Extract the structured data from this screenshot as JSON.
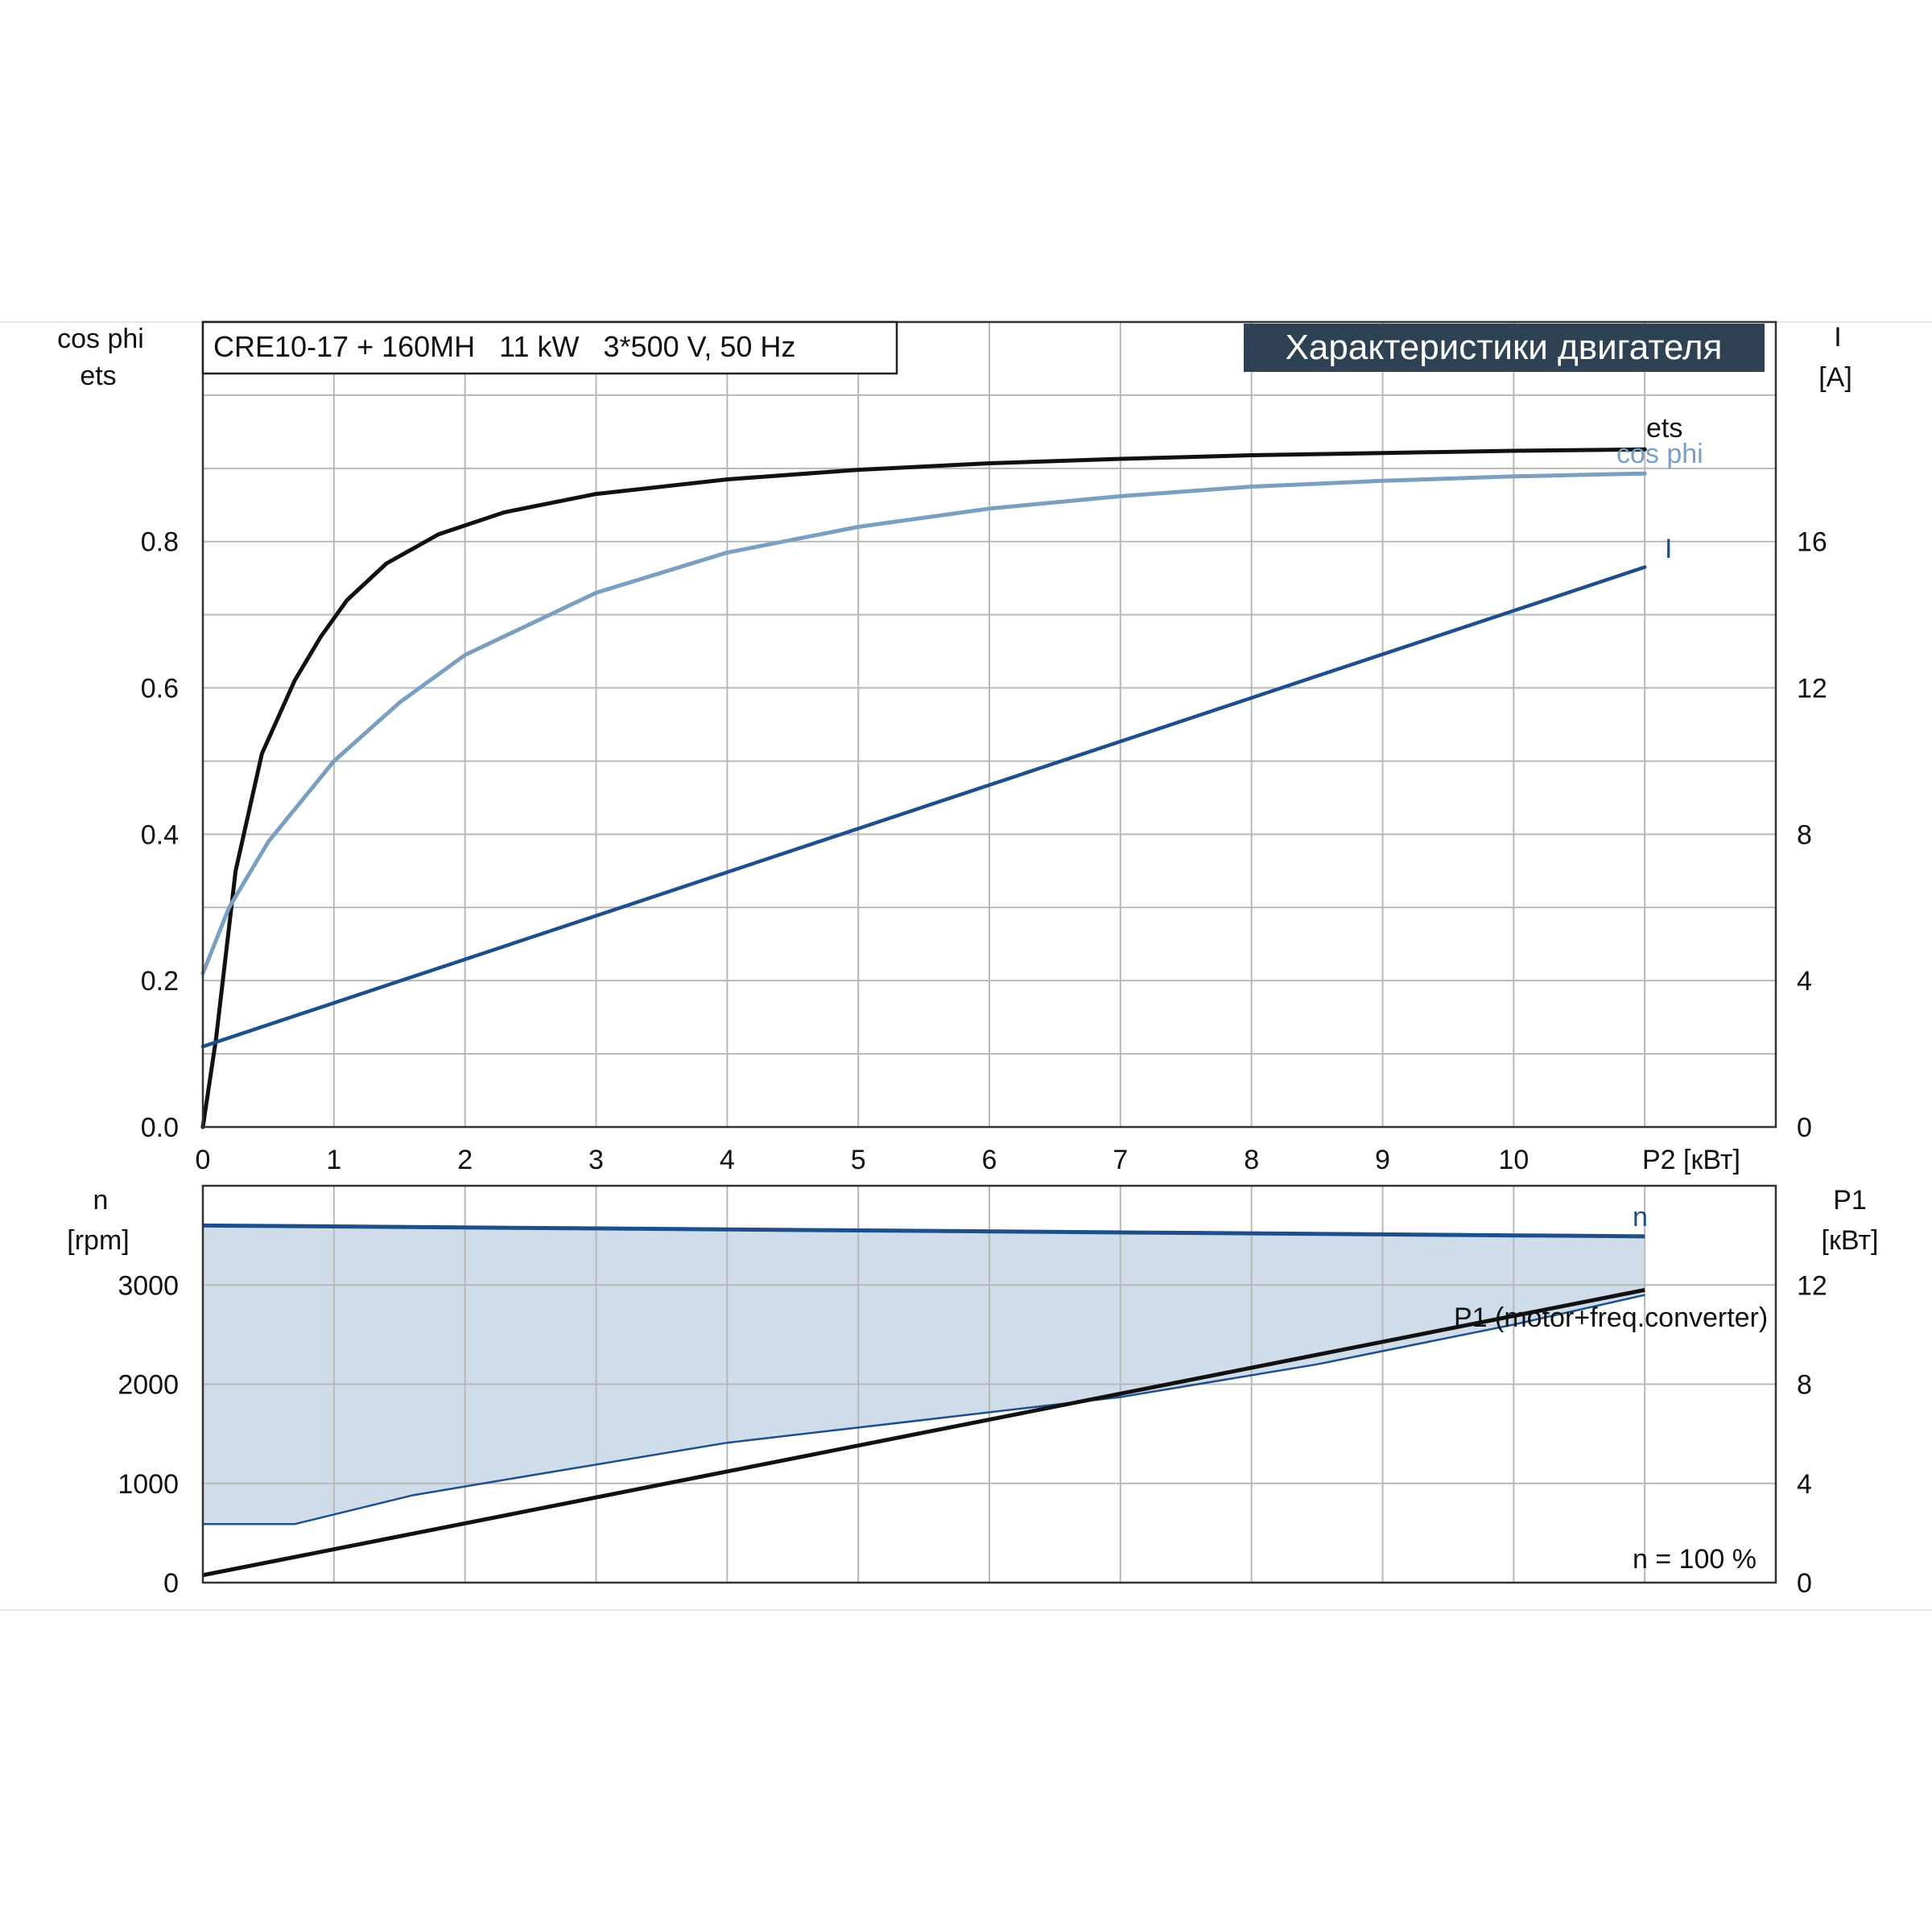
{
  "header": {
    "pump_info": "CRE10-17 + 160MH   11 kW   3*500 V, 50 Hz",
    "title": "Характеристики двигателя"
  },
  "upper_axes": {
    "left_label_1": "cos phi",
    "left_label_2": "ets",
    "right_label_1": "I",
    "right_label_2": "[A]",
    "x_label": "P2 [кВт]",
    "x_ticks": [
      "0",
      "1",
      "2",
      "3",
      "4",
      "5",
      "6",
      "7",
      "8",
      "9",
      "10"
    ],
    "left_ticks": [
      "0.0",
      "0.2",
      "0.4",
      "0.6",
      "0.8"
    ],
    "right_ticks": [
      "0",
      "4",
      "8",
      "12",
      "16"
    ]
  },
  "lower_axes": {
    "left_label_1": "n",
    "left_label_2": "[rpm]",
    "right_label_1": "P1",
    "right_label_2": "[кВт]",
    "left_ticks": [
      "0",
      "1000",
      "2000",
      "3000"
    ],
    "right_ticks": [
      "0",
      "4",
      "8",
      "12"
    ],
    "note": "n = 100 %"
  },
  "colors": {
    "ets": "#111111",
    "cos_phi": "#7a9fc0",
    "current": "#1d4f8c",
    "speed": "#1d4f8c",
    "p1": "#111111",
    "band_fill": "#cfdcea",
    "title_bg": "#2f4253"
  },
  "chart_data": [
    {
      "type": "line",
      "title": "Характеристики двигателя",
      "xlabel": "P2 [кВт]",
      "ylabel": "cos phi / ets",
      "y2label": "I [A]",
      "xlim": [
        0,
        12
      ],
      "ylim": [
        0,
        1.1
      ],
      "y2lim": [
        0,
        22
      ],
      "grid": true,
      "series": [
        {
          "name": "ets",
          "axis": "left",
          "x": [
            0,
            0.1,
            0.25,
            0.45,
            0.7,
            0.9,
            1.1,
            1.4,
            1.8,
            2.3,
            3,
            4,
            5,
            6,
            7,
            8,
            9,
            10,
            11
          ],
          "values": [
            0,
            0.12,
            0.35,
            0.51,
            0.61,
            0.67,
            0.72,
            0.77,
            0.81,
            0.84,
            0.865,
            0.885,
            0.898,
            0.907,
            0.913,
            0.918,
            0.921,
            0.924,
            0.926
          ]
        },
        {
          "name": "cos phi",
          "axis": "left",
          "x": [
            0,
            0.2,
            0.5,
            1,
            1.5,
            2,
            3,
            4,
            5,
            6,
            7,
            8,
            9,
            10,
            11
          ],
          "values": [
            0.21,
            0.3,
            0.39,
            0.5,
            0.58,
            0.645,
            0.73,
            0.785,
            0.82,
            0.845,
            0.862,
            0.875,
            0.883,
            0.889,
            0.893
          ]
        },
        {
          "name": "I",
          "axis": "right",
          "x": [
            0,
            11
          ],
          "values": [
            2.2,
            15.3
          ]
        }
      ]
    },
    {
      "type": "area",
      "xlabel": "P2 [кВт]",
      "ylabel": "n [rpm]",
      "y2label": "P1 [кВт]",
      "xlim": [
        0,
        12
      ],
      "ylim": [
        0,
        4000
      ],
      "y2lim": [
        0,
        16
      ],
      "grid": true,
      "series": [
        {
          "name": "n",
          "axis": "left",
          "x": [
            0,
            11
          ],
          "values": [
            3600,
            3490
          ]
        },
        {
          "name": "P1 (motor+freq.converter)",
          "axis": "right",
          "x": [
            0,
            11
          ],
          "values": [
            0.3,
            11.8
          ]
        },
        {
          "name": "",
          "role": "band_lower",
          "axis": "left",
          "x": [
            0,
            0.7,
            1.6,
            2.5,
            4,
            5.5,
            7,
            8.5,
            10,
            11
          ],
          "values": [
            590,
            590,
            880,
            1080,
            1410,
            1640,
            1870,
            2200,
            2600,
            2900
          ]
        }
      ]
    }
  ]
}
